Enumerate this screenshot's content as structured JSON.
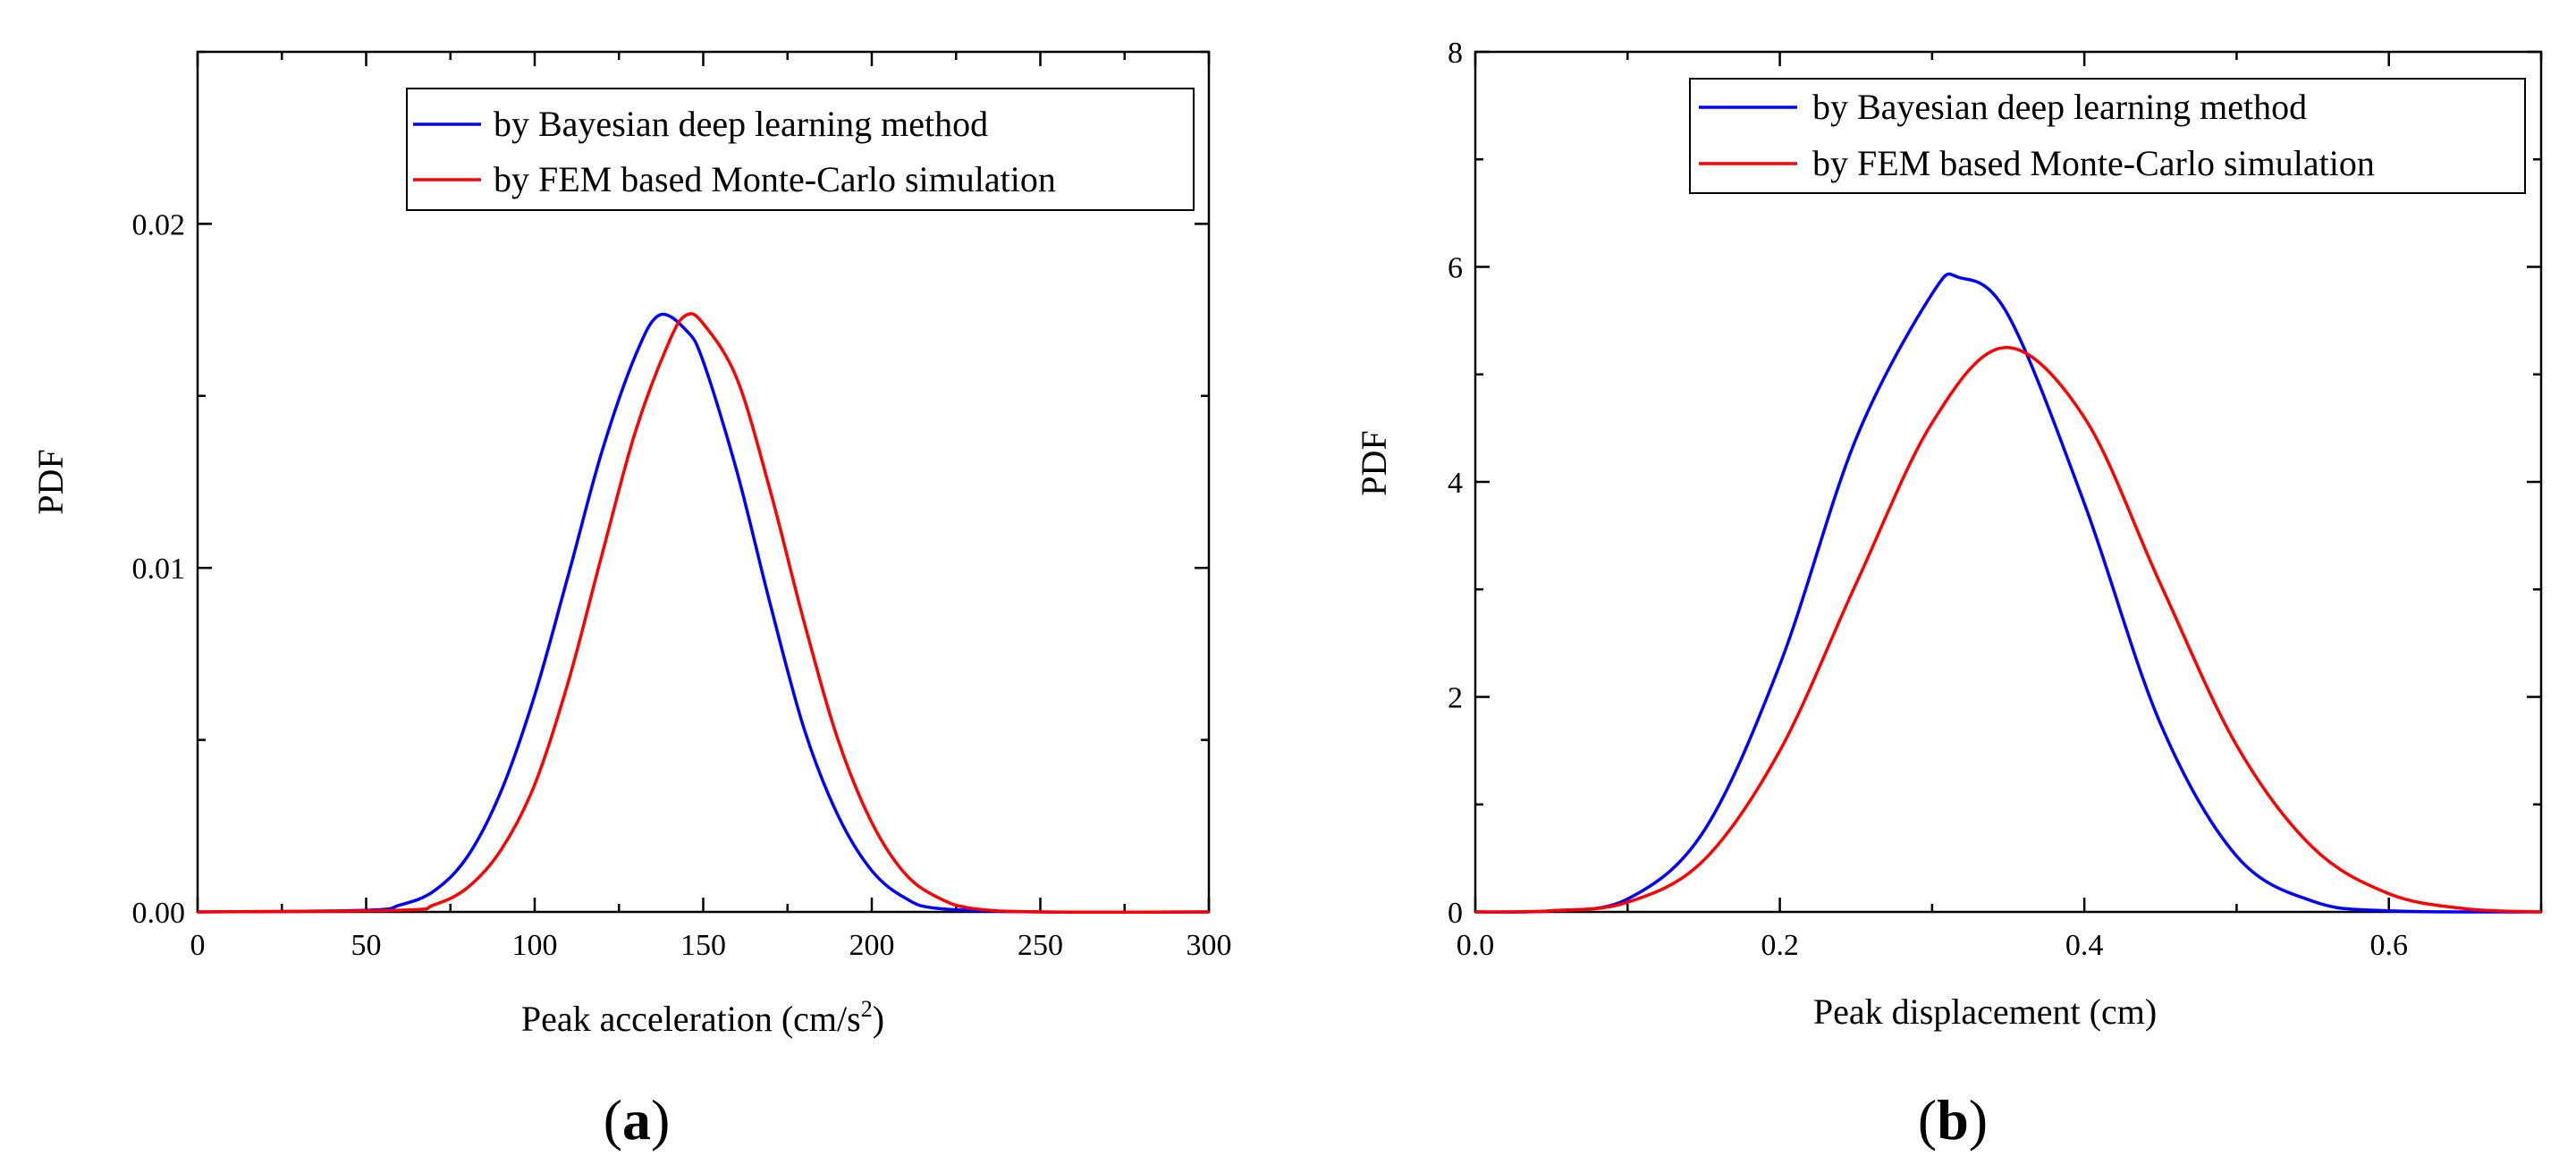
{
  "chart_data": [
    {
      "type": "line",
      "panel_label": "a",
      "xlabel": "Peak acceleration (cm/s",
      "xlabel_sup": "2",
      "xlabel_end": ")",
      "ylabel": "PDF",
      "xlim": [
        0,
        300
      ],
      "ylim": [
        0,
        0.025
      ],
      "x_ticks": [
        0,
        50,
        100,
        150,
        200,
        250,
        300
      ],
      "x_tick_labels": [
        "0",
        "50",
        "100",
        "150",
        "200",
        "250",
        "300"
      ],
      "y_ticks": [
        0,
        0.01,
        0.02
      ],
      "y_tick_labels": [
        "0.00",
        "0.01",
        "0.02"
      ],
      "legend_position": "top-right",
      "series": [
        {
          "name": "by Bayesian deep learning method",
          "color": "#0000ff",
          "x": [
            0,
            50,
            60,
            70,
            80,
            90,
            100,
            110,
            120,
            130,
            137,
            145,
            150,
            160,
            170,
            180,
            190,
            200,
            210,
            220,
            250,
            300
          ],
          "y": [
            0,
            5e-05,
            0.0002,
            0.0006,
            0.0016,
            0.0035,
            0.0063,
            0.0098,
            0.0134,
            0.0162,
            0.01735,
            0.0169,
            0.016,
            0.0128,
            0.0089,
            0.0053,
            0.0028,
            0.0012,
            0.0004,
            0.0001,
            0,
            0
          ]
        },
        {
          "name": "by FEM based Monte-Carlo simulation",
          "color": "#ff0000",
          "x": [
            0,
            60,
            70,
            80,
            90,
            100,
            110,
            120,
            130,
            140,
            145,
            150,
            160,
            170,
            180,
            190,
            200,
            210,
            220,
            230,
            250,
            300
          ],
          "y": [
            0,
            5e-05,
            0.0002,
            0.0007,
            0.0018,
            0.0037,
            0.0067,
            0.0104,
            0.014,
            0.0166,
            0.01735,
            0.0171,
            0.0155,
            0.0122,
            0.0084,
            0.005,
            0.0026,
            0.0011,
            0.0004,
            0.0001,
            0,
            0
          ]
        }
      ]
    },
    {
      "type": "line",
      "panel_label": "b",
      "xlabel": "Peak displacement (cm)",
      "ylabel": "PDF",
      "xlim": [
        0,
        0.7
      ],
      "ylim": [
        0,
        8
      ],
      "x_ticks": [
        0,
        0.2,
        0.4,
        0.6
      ],
      "x_tick_labels": [
        "0.0",
        "0.2",
        "0.4",
        "0.6"
      ],
      "y_ticks": [
        0,
        2,
        4,
        6,
        8
      ],
      "y_tick_labels": [
        "0",
        "2",
        "4",
        "6",
        "8"
      ],
      "legend_position": "top-right",
      "series": [
        {
          "name": "by Bayesian deep learning method",
          "color": "#0000ff",
          "x": [
            0,
            0.05,
            0.1,
            0.15,
            0.2,
            0.25,
            0.3,
            0.318,
            0.35,
            0.4,
            0.45,
            0.5,
            0.55,
            0.6,
            0.7
          ],
          "y": [
            0,
            0.01,
            0.12,
            0.75,
            2.3,
            4.4,
            5.75,
            5.9,
            5.55,
            3.8,
            1.75,
            0.52,
            0.1,
            0.01,
            0
          ]
        },
        {
          "name": "by FEM based Monte-Carlo simulation",
          "color": "#ff0000",
          "x": [
            0,
            0.05,
            0.1,
            0.15,
            0.2,
            0.25,
            0.3,
            0.348,
            0.4,
            0.45,
            0.5,
            0.55,
            0.6,
            0.65,
            0.7
          ],
          "y": [
            0,
            0.01,
            0.09,
            0.48,
            1.5,
            3.05,
            4.55,
            5.25,
            4.6,
            3.05,
            1.55,
            0.6,
            0.17,
            0.03,
            0
          ]
        }
      ]
    }
  ]
}
